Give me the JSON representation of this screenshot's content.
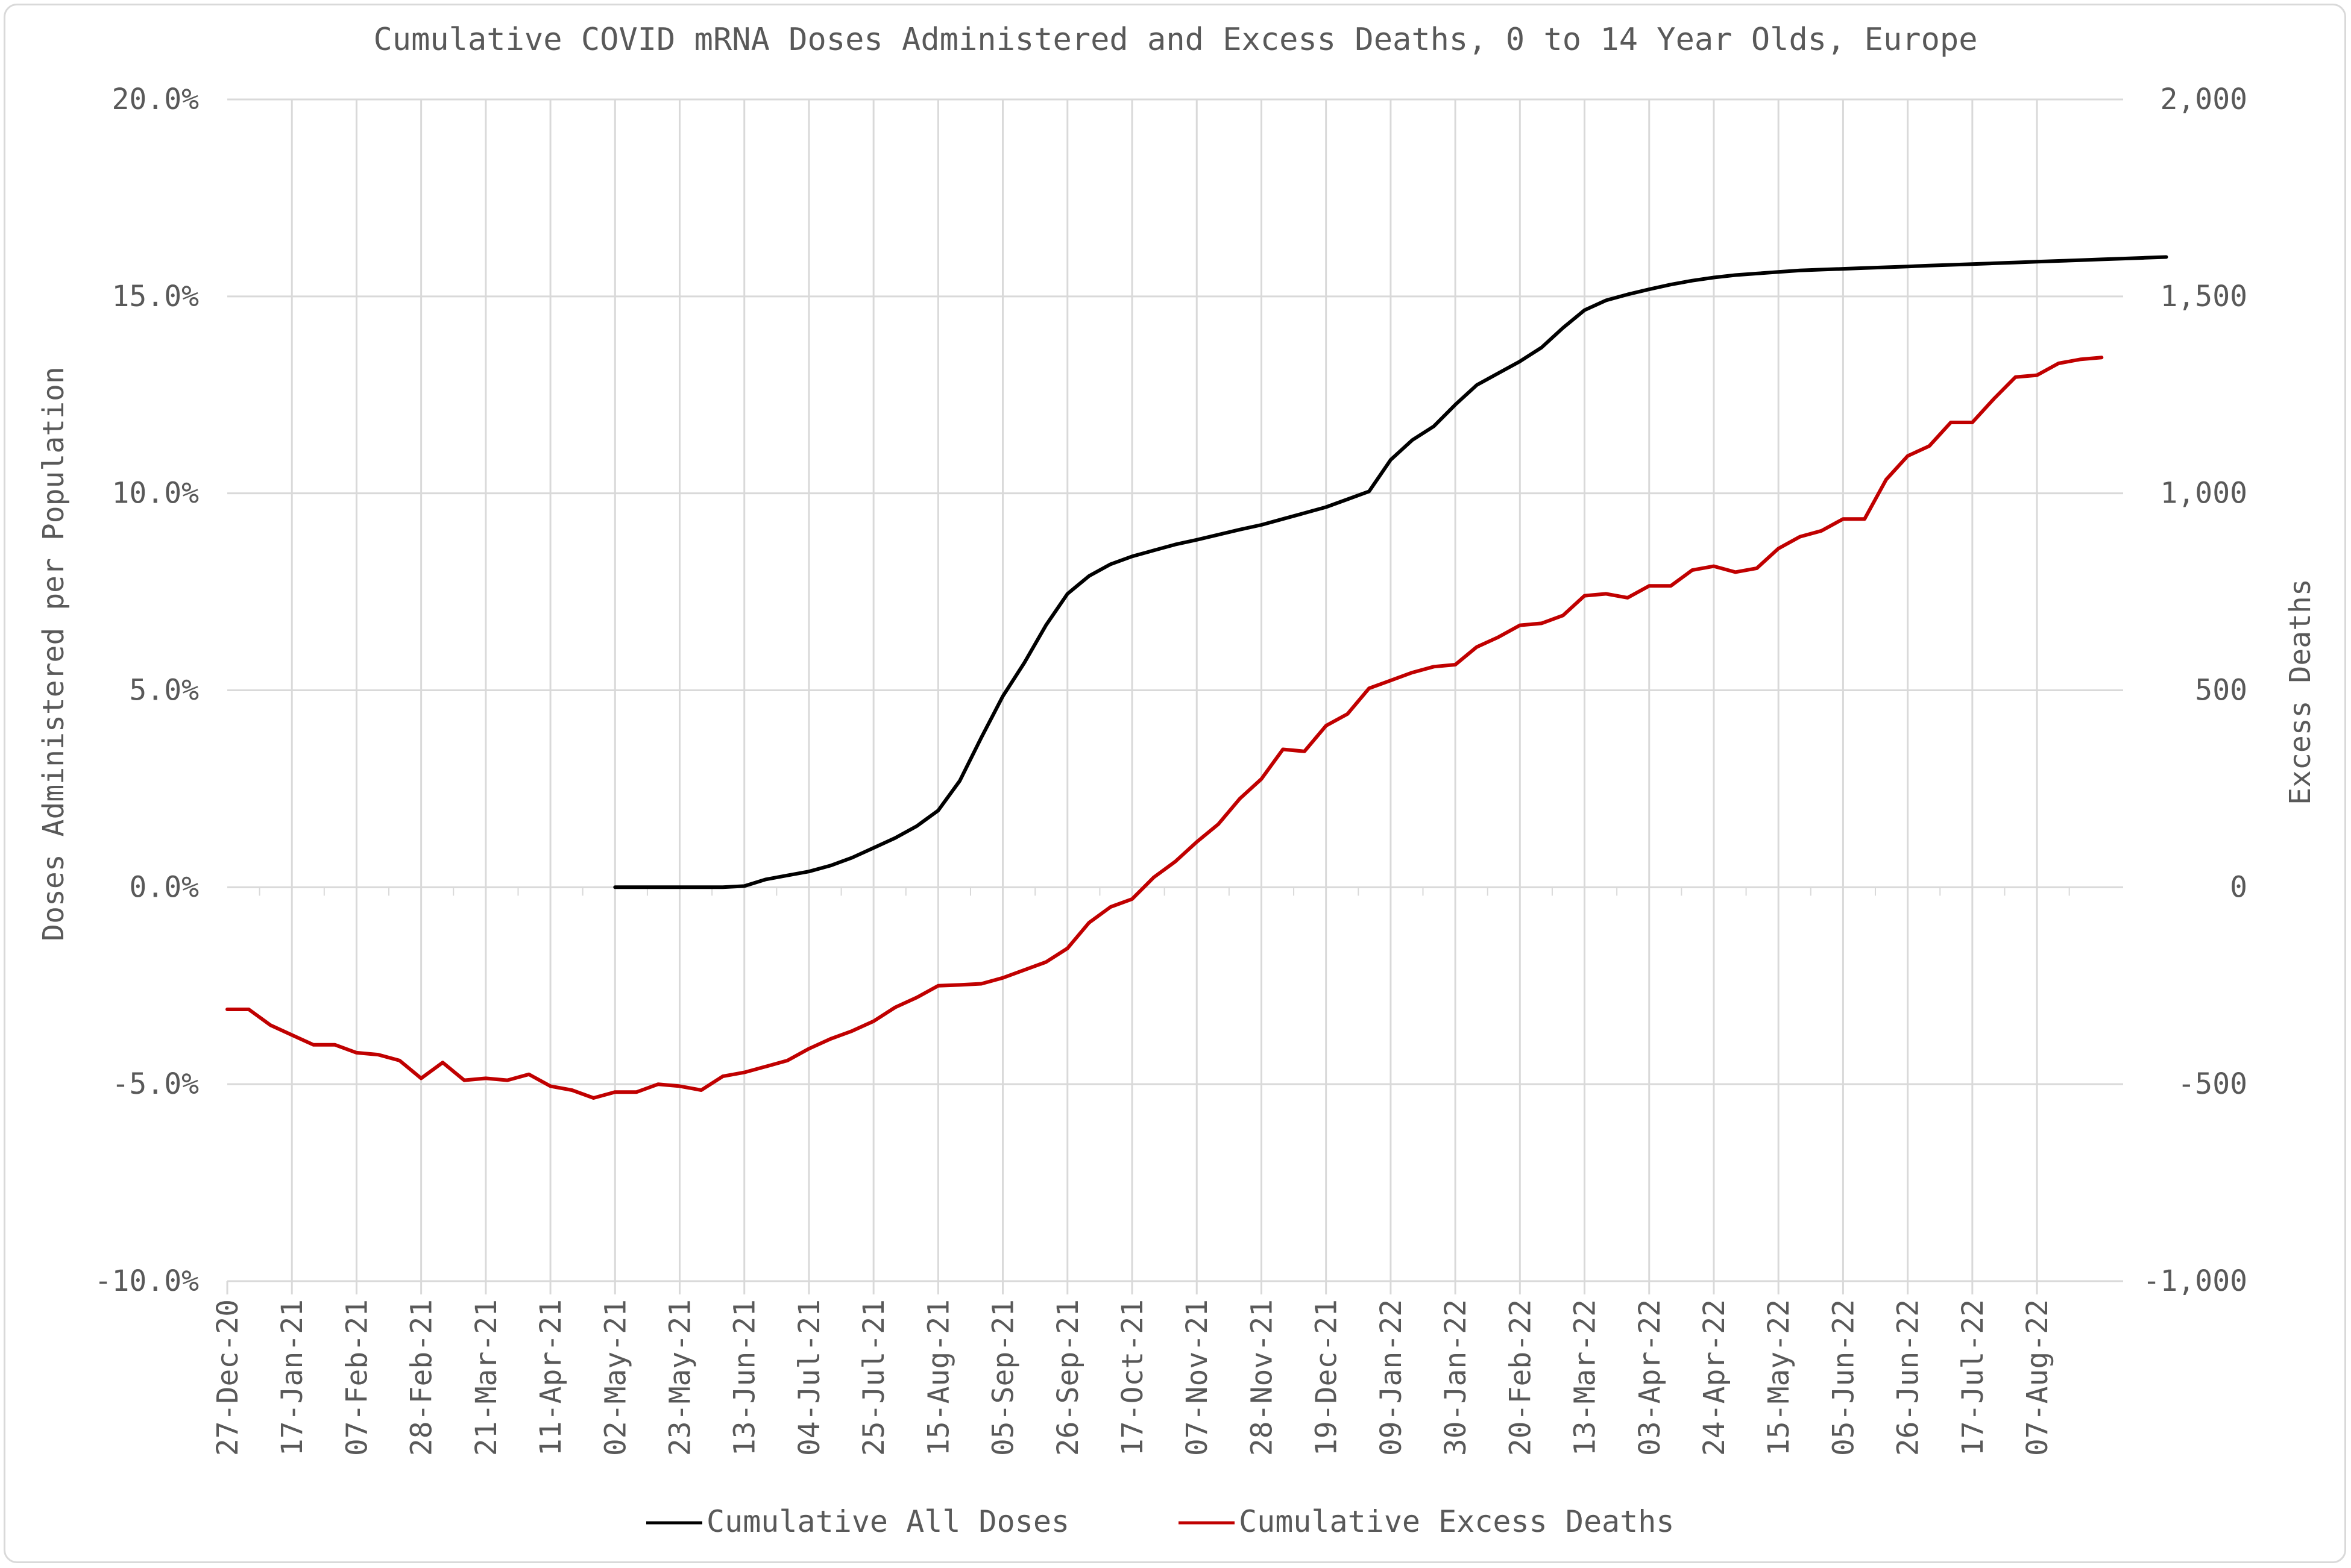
{
  "chart_data": {
    "type": "line",
    "title": "Cumulative COVID mRNA Doses Administered and Excess Deaths, 0 to 14 Year Olds, Europe",
    "ylabel_left": "Doses Administered per Population",
    "ylabel_right": "Excess Deaths",
    "ylim_left": [
      -10,
      20
    ],
    "ylim_right": [
      -1000,
      2000
    ],
    "grid": true,
    "legend_position": "bottom",
    "yticks_left": [
      "20.0%",
      "15.0%",
      "10.0%",
      "5.0%",
      "0.0%",
      "-5.0%",
      "-10.0%"
    ],
    "yticks_right": [
      "2,000",
      "1,500",
      "1,000",
      "500",
      "0",
      "-500",
      "-1,000"
    ],
    "xtick_labels": [
      "27-Dec-20",
      "17-Jan-21",
      "07-Feb-21",
      "28-Feb-21",
      "21-Mar-21",
      "11-Apr-21",
      "02-May-21",
      "23-May-21",
      "13-Jun-21",
      "04-Jul-21",
      "25-Jul-21",
      "15-Aug-21",
      "05-Sep-21",
      "26-Sep-21",
      "17-Oct-21",
      "07-Nov-21",
      "28-Nov-21",
      "19-Dec-21",
      "09-Jan-22",
      "30-Jan-22",
      "20-Feb-22",
      "13-Mar-22",
      "03-Apr-22",
      "24-Apr-22",
      "15-May-22",
      "05-Jun-22",
      "26-Jun-22",
      "17-Jul-22",
      "07-Aug-22"
    ],
    "week_count": 88,
    "series": [
      {
        "name": "Cumulative All Doses",
        "axis": "left",
        "color": "#000000",
        "start_week": 18,
        "values": [
          0.0,
          0.0,
          0.0,
          0.0,
          0.0,
          0.0,
          0.03,
          0.2,
          0.3,
          0.4,
          0.55,
          0.75,
          1.0,
          1.25,
          1.55,
          1.95,
          2.7,
          3.8,
          4.85,
          5.7,
          6.65,
          7.45,
          7.9,
          8.2,
          8.4,
          8.55,
          8.7,
          8.82,
          8.95,
          9.08,
          9.2,
          9.35,
          9.5,
          9.65,
          9.85,
          10.05,
          10.85,
          11.35,
          11.7,
          12.25,
          12.75,
          13.05,
          13.35,
          13.7,
          14.2,
          14.65,
          14.9,
          15.05,
          15.18,
          15.3,
          15.4,
          15.48,
          15.54,
          15.58,
          15.62,
          15.66,
          15.68,
          15.7,
          15.72,
          15.74,
          15.76,
          15.78,
          15.8,
          15.82,
          15.84,
          15.86,
          15.88,
          15.9,
          15.92,
          15.94,
          15.96,
          15.98,
          16.0
        ]
      },
      {
        "name": "Cumulative Excess Deaths",
        "axis": "right",
        "color": "#c00000",
        "start_week": 0,
        "values": [
          -310,
          -310,
          -350,
          -375,
          -400,
          -400,
          -420,
          -425,
          -440,
          -485,
          -445,
          -490,
          -485,
          -490,
          -475,
          -505,
          -515,
          -535,
          -520,
          -520,
          -500,
          -505,
          -515,
          -480,
          -470,
          -455,
          -440,
          -410,
          -385,
          -365,
          -340,
          -305,
          -280,
          -250,
          -248,
          -245,
          -230,
          -210,
          -190,
          -155,
          -90,
          -50,
          -30,
          25,
          65,
          115,
          160,
          225,
          275,
          350,
          345,
          410,
          440,
          505,
          525,
          545,
          560,
          565,
          610,
          635,
          665,
          670,
          690,
          740,
          745,
          735,
          765,
          765,
          805,
          815,
          800,
          810,
          860,
          890,
          905,
          935,
          935,
          1035,
          1095,
          1120,
          1180,
          1180,
          1240,
          1295,
          1300,
          1330,
          1340,
          1345
        ]
      }
    ]
  },
  "colors": {
    "grid": "#d9d9d9",
    "text": "#595959",
    "doses": "#000000",
    "deaths": "#c00000"
  }
}
